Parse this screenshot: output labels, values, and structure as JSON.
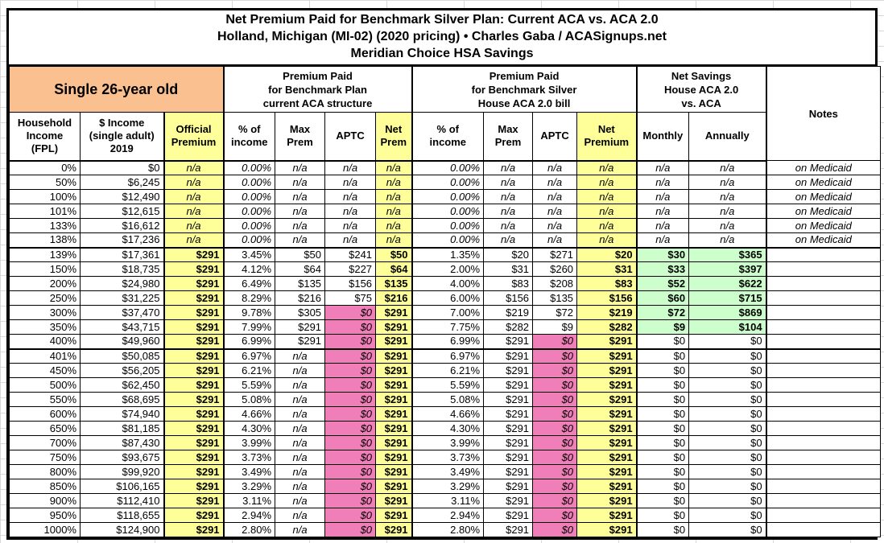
{
  "title": {
    "line1": "Net Premium Paid for Benchmark Silver Plan: Current ACA vs. ACA 2.0",
    "line2": "Holland, Michigan (MI-02) (2020 pricing) • Charles Gaba / ACASignups.net",
    "line3": "Meridian Choice HSA Savings"
  },
  "headers": {
    "group_demo": "Single 26-year old",
    "group_aca": "Premium Paid\nfor Benchmark Plan\ncurrent ACA structure",
    "group_aca2": "Premium Paid\nfor Benchmark Silver\nHouse ACA 2.0 bill",
    "group_savings": "Net Savings\nHouse ACA 2.0\nvs. ACA",
    "notes": "Notes"
  },
  "columns": [
    "Household\nIncome\n(FPL)",
    "$ Income\n(single adult)\n2019",
    "Official\nPremium",
    "% of\nincome",
    "Max\nPrem",
    "APTC",
    "Net\nPrem",
    "% of\nincome",
    "Max\nPrem",
    "APTC",
    "Net\nPremium",
    "Monthly",
    "Annually"
  ],
  "table": {
    "col_keys": [
      "fpl",
      "income",
      "official",
      "pct1",
      "max1",
      "aptc1",
      "net1",
      "pct2",
      "max2",
      "aptc2",
      "net2",
      "monthly",
      "annually",
      "notes"
    ],
    "rows": [
      [
        "0%",
        "$0",
        "n/a",
        "0.00%",
        "n/a",
        "n/a",
        "n/a",
        "0.00%",
        "n/a",
        "n/a",
        "n/a",
        "n/a",
        "n/a",
        "on Medicaid"
      ],
      [
        "50%",
        "$6,245",
        "n/a",
        "0.00%",
        "n/a",
        "n/a",
        "n/a",
        "0.00%",
        "n/a",
        "n/a",
        "n/a",
        "n/a",
        "n/a",
        "on Medicaid"
      ],
      [
        "100%",
        "$12,490",
        "n/a",
        "0.00%",
        "n/a",
        "n/a",
        "n/a",
        "0.00%",
        "n/a",
        "n/a",
        "n/a",
        "n/a",
        "n/a",
        "on Medicaid"
      ],
      [
        "101%",
        "$12,615",
        "n/a",
        "0.00%",
        "n/a",
        "n/a",
        "n/a",
        "0.00%",
        "n/a",
        "n/a",
        "n/a",
        "n/a",
        "n/a",
        "on Medicaid"
      ],
      [
        "133%",
        "$16,612",
        "n/a",
        "0.00%",
        "n/a",
        "n/a",
        "n/a",
        "0.00%",
        "n/a",
        "n/a",
        "n/a",
        "n/a",
        "n/a",
        "on Medicaid"
      ],
      [
        "138%",
        "$17,236",
        "n/a",
        "0.00%",
        "n/a",
        "n/a",
        "n/a",
        "0.00%",
        "n/a",
        "n/a",
        "n/a",
        "n/a",
        "n/a",
        "on Medicaid"
      ],
      [
        "139%",
        "$17,361",
        "$291",
        "3.45%",
        "$50",
        "$241",
        "$50",
        "1.35%",
        "$20",
        "$271",
        "$20",
        "$30",
        "$365",
        ""
      ],
      [
        "150%",
        "$18,735",
        "$291",
        "4.12%",
        "$64",
        "$227",
        "$64",
        "2.00%",
        "$31",
        "$260",
        "$31",
        "$33",
        "$397",
        ""
      ],
      [
        "200%",
        "$24,980",
        "$291",
        "6.49%",
        "$135",
        "$156",
        "$135",
        "4.00%",
        "$83",
        "$208",
        "$83",
        "$52",
        "$622",
        ""
      ],
      [
        "250%",
        "$31,225",
        "$291",
        "8.29%",
        "$216",
        "$75",
        "$216",
        "6.00%",
        "$156",
        "$135",
        "$156",
        "$60",
        "$715",
        ""
      ],
      [
        "300%",
        "$37,470",
        "$291",
        "9.78%",
        "$305",
        "$0",
        "$291",
        "7.00%",
        "$219",
        "$72",
        "$219",
        "$72",
        "$869",
        ""
      ],
      [
        "350%",
        "$43,715",
        "$291",
        "7.99%",
        "$291",
        "$0",
        "$291",
        "7.75%",
        "$282",
        "$9",
        "$282",
        "$9",
        "$104",
        ""
      ],
      [
        "400%",
        "$49,960",
        "$291",
        "6.99%",
        "$291",
        "$0",
        "$291",
        "6.99%",
        "$291",
        "$0",
        "$291",
        "$0",
        "$0",
        ""
      ],
      [
        "401%",
        "$50,085",
        "$291",
        "6.97%",
        "n/a",
        "$0",
        "$291",
        "6.97%",
        "$291",
        "$0",
        "$291",
        "$0",
        "$0",
        ""
      ],
      [
        "450%",
        "$56,205",
        "$291",
        "6.21%",
        "n/a",
        "$0",
        "$291",
        "6.21%",
        "$291",
        "$0",
        "$291",
        "$0",
        "$0",
        ""
      ],
      [
        "500%",
        "$62,450",
        "$291",
        "5.59%",
        "n/a",
        "$0",
        "$291",
        "5.59%",
        "$291",
        "$0",
        "$291",
        "$0",
        "$0",
        ""
      ],
      [
        "550%",
        "$68,695",
        "$291",
        "5.08%",
        "n/a",
        "$0",
        "$291",
        "5.08%",
        "$291",
        "$0",
        "$291",
        "$0",
        "$0",
        ""
      ],
      [
        "600%",
        "$74,940",
        "$291",
        "4.66%",
        "n/a",
        "$0",
        "$291",
        "4.66%",
        "$291",
        "$0",
        "$291",
        "$0",
        "$0",
        ""
      ],
      [
        "650%",
        "$81,185",
        "$291",
        "4.30%",
        "n/a",
        "$0",
        "$291",
        "4.30%",
        "$291",
        "$0",
        "$291",
        "$0",
        "$0",
        ""
      ],
      [
        "700%",
        "$87,430",
        "$291",
        "3.99%",
        "n/a",
        "$0",
        "$291",
        "3.99%",
        "$291",
        "$0",
        "$291",
        "$0",
        "$0",
        ""
      ],
      [
        "750%",
        "$93,675",
        "$291",
        "3.73%",
        "n/a",
        "$0",
        "$291",
        "3.73%",
        "$291",
        "$0",
        "$291",
        "$0",
        "$0",
        ""
      ],
      [
        "800%",
        "$99,920",
        "$291",
        "3.49%",
        "n/a",
        "$0",
        "$291",
        "3.49%",
        "$291",
        "$0",
        "$291",
        "$0",
        "$0",
        ""
      ],
      [
        "850%",
        "$106,165",
        "$291",
        "3.29%",
        "n/a",
        "$0",
        "$291",
        "3.29%",
        "$291",
        "$0",
        "$291",
        "$0",
        "$0",
        ""
      ],
      [
        "900%",
        "$112,410",
        "$291",
        "3.11%",
        "n/a",
        "$0",
        "$291",
        "3.11%",
        "$291",
        "$0",
        "$291",
        "$0",
        "$0",
        ""
      ],
      [
        "950%",
        "$118,655",
        "$291",
        "2.94%",
        "n/a",
        "$0",
        "$291",
        "2.94%",
        "$291",
        "$0",
        "$291",
        "$0",
        "$0",
        ""
      ],
      [
        "1000%",
        "$124,900",
        "$291",
        "2.80%",
        "n/a",
        "$0",
        "$291",
        "2.80%",
        "$291",
        "$0",
        "$291",
        "$0",
        "$0",
        ""
      ]
    ]
  },
  "colors": {
    "demo_header_orange": "#FAC090",
    "highlight_yellow": "#FFFF99",
    "zero_aptc_pink": "#F07EB8",
    "savings_green": "#CCFFCC",
    "gridline_gray": "#D8D8D8",
    "border_black": "#000000"
  }
}
